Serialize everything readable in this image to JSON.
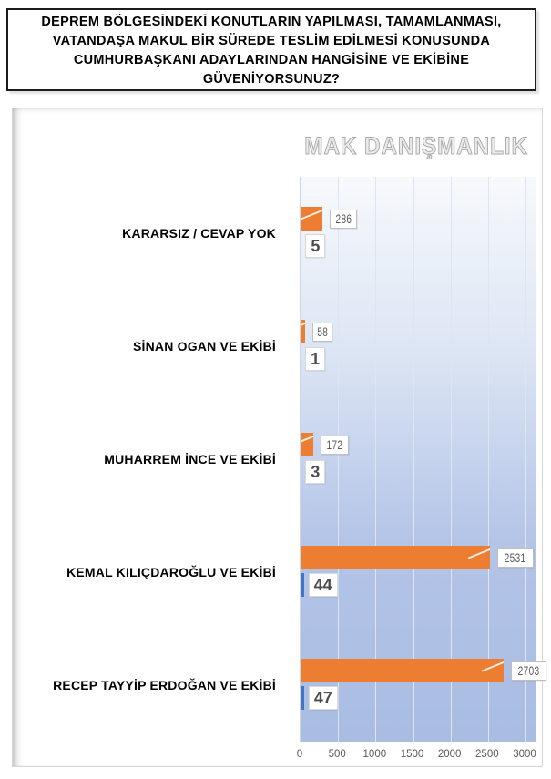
{
  "title": {
    "lines": [
      "DEPREM BÖLGESİNDEKİ KONUTLARIN YAPILMASI, TAMAMLANMASI,",
      "VATANDAŞA MAKUL BİR SÜREDE TESLİM EDİLMESİ KONUSUNDA",
      "CUMHURBAŞKANI ADAYLARINDAN HANGİSİNE VE EKİBİNE",
      "GÜVENİYORSUNUZ?"
    ]
  },
  "watermark": "MAK DANIŞMANLIK",
  "chart_data": {
    "type": "bar",
    "orientation": "horizontal",
    "title": "DEPREM BÖLGESİNDEKİ KONUTLARIN YAPILMASI, TAMAMLANMASI, VATANDAŞA MAKUL BİR SÜREDE TESLİM EDİLMESİ KONUSUNDA CUMHURBAŞKANI ADAYLARINDAN HANGİSİNE VE EKİBİNE GÜVENİYORSUNUZ?",
    "categories": [
      "KARARSIZ / CEVAP YOK",
      "SİNAN OGAN VE EKİBİ",
      "MUHARREM İNCE VE EKİBİ",
      "KEMAL KILIÇDAROĞLU VE EKİBİ",
      "RECEP TAYYİP ERDOĞAN VE EKİBİ"
    ],
    "series": [
      {
        "name": "series-1",
        "color": "#ED7D31",
        "values": [
          286,
          58,
          172,
          2531,
          2703
        ]
      },
      {
        "name": "series-2",
        "color": "#4472C4",
        "values": [
          5,
          1,
          3,
          44,
          47
        ]
      }
    ],
    "data_labels": {
      "series-1": [
        "286",
        "58",
        "172",
        "2531",
        "2703"
      ],
      "series-2": [
        "5",
        "1",
        "3",
        "44",
        "47"
      ]
    },
    "xlabel": "",
    "ylabel": "",
    "xlim": [
      0,
      3000
    ],
    "x_ticks": [
      0,
      500,
      1000,
      1500,
      2000,
      2500,
      3000
    ],
    "grid": "vertical",
    "gridline_color": "#dde5f3",
    "plot_bg_top": "#f7f9fc",
    "plot_bg_bottom": "#a9bce2",
    "legend": "none",
    "value_label_color": "#595959",
    "category_label_color": "#000000"
  }
}
